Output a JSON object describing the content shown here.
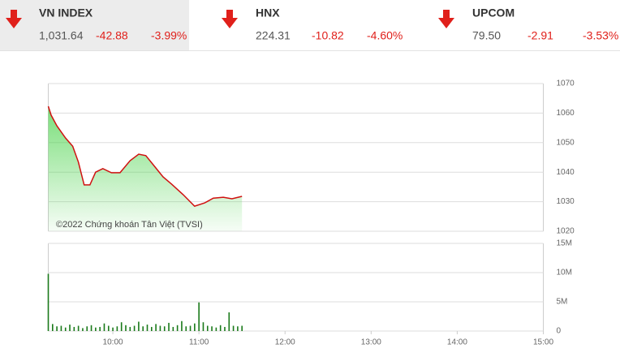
{
  "indices": [
    {
      "name": "VN INDEX",
      "value": "1,031.64",
      "change": "-42.88",
      "percent": "-3.99%"
    },
    {
      "name": "HNX",
      "value": "224.31",
      "change": "-10.82",
      "percent": "-4.60%"
    },
    {
      "name": "UPCOM",
      "value": "79.50",
      "change": "-2.91",
      "percent": "-3.53%"
    }
  ],
  "chart_data": [
    {
      "type": "line",
      "color": "#d01010",
      "fill_color": "#4cd34c",
      "grid": true,
      "annotation": "©2022 Chứng khoán Tân Việt (TVSI)",
      "x": [
        555,
        557,
        561,
        567,
        572,
        576,
        580,
        584,
        588,
        593,
        599,
        605,
        612,
        618,
        623,
        629,
        635,
        641,
        649,
        657,
        664,
        670,
        677,
        683,
        690
      ],
      "values": [
        1062.3,
        1059.3,
        1055.7,
        1051.6,
        1048.8,
        1043.4,
        1035.7,
        1035.7,
        1040,
        1041.2,
        1039.8,
        1039.8,
        1043.9,
        1046.1,
        1045.6,
        1042,
        1038.4,
        1035.9,
        1032.4,
        1028.5,
        1029.6,
        1031.2,
        1031.5,
        1031,
        1031.8
      ],
      "xlim": [
        555,
        900
      ],
      "ylim": [
        1020,
        1070
      ],
      "yticks": [
        1020,
        1030,
        1040,
        1050,
        1060,
        1070
      ]
    },
    {
      "type": "bar",
      "color": "#1a7a1a",
      "grid": true,
      "x": [
        555,
        558,
        561,
        564,
        567,
        570,
        573,
        576,
        579,
        582,
        585,
        588,
        591,
        594,
        597,
        600,
        603,
        606,
        609,
        612,
        615,
        618,
        621,
        624,
        627,
        630,
        633,
        636,
        639,
        642,
        645,
        648,
        651,
        654,
        657,
        660,
        663,
        666,
        669,
        672,
        675,
        678,
        681,
        684,
        687,
        690
      ],
      "values": [
        9.8,
        1.2,
        0.8,
        0.9,
        0.6,
        1.1,
        0.7,
        0.9,
        0.5,
        0.8,
        1.0,
        0.6,
        0.7,
        1.3,
        0.9,
        0.6,
        0.8,
        1.5,
        1.0,
        0.7,
        0.9,
        1.6,
        0.8,
        1.1,
        0.7,
        1.2,
        0.9,
        0.8,
        1.4,
        0.7,
        1.0,
        1.7,
        0.8,
        0.9,
        1.3,
        4.9,
        1.5,
        0.9,
        0.8,
        0.6,
        1.0,
        0.7,
        3.2,
        0.9,
        0.8,
        0.9
      ],
      "xlim": [
        555,
        900
      ],
      "xticks": [
        {
          "value": 600,
          "label": "10:00"
        },
        {
          "value": 660,
          "label": "11:00"
        },
        {
          "value": 720,
          "label": "12:00"
        },
        {
          "value": 780,
          "label": "13:00"
        },
        {
          "value": 840,
          "label": "14:00"
        },
        {
          "value": 900,
          "label": "15:00"
        }
      ],
      "ylim": [
        0,
        15
      ],
      "yticks": [
        0,
        {
          "value": 5,
          "label": "5M"
        },
        {
          "value": 10,
          "label": "10M"
        },
        {
          "value": 15,
          "label": "15M"
        }
      ]
    }
  ]
}
